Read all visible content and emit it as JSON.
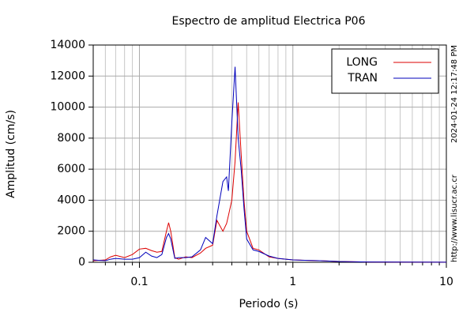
{
  "chart_data": {
    "type": "line",
    "title": "Espectro de amplitud Electrica P06",
    "xlabel": "Periodo (s)",
    "ylabel": "Amplitud (cm/s)",
    "annotations": [
      "2024-01-24 12:17:48 PM",
      "http://www.lisucr.ac.cr"
    ],
    "xscale": "log",
    "xlim": [
      0.05,
      10
    ],
    "xticks": [
      0.1,
      1,
      10
    ],
    "xminorticks": [
      0.06,
      0.07,
      0.08,
      0.09,
      0.2,
      0.3,
      0.4,
      0.5,
      0.6,
      0.7,
      0.8,
      0.9,
      2,
      3,
      4,
      5,
      6,
      7,
      8,
      9
    ],
    "ylim": [
      0,
      14000
    ],
    "yticks": [
      0,
      2000,
      4000,
      6000,
      8000,
      10000,
      12000,
      14000
    ],
    "grid": true,
    "legend": "upper right",
    "x": [
      0.05,
      0.06,
      0.065,
      0.07,
      0.08,
      0.09,
      0.1,
      0.11,
      0.12,
      0.13,
      0.14,
      0.15,
      0.155,
      0.16,
      0.17,
      0.18,
      0.2,
      0.22,
      0.25,
      0.27,
      0.3,
      0.32,
      0.35,
      0.37,
      0.38,
      0.4,
      0.42,
      0.44,
      0.46,
      0.48,
      0.5,
      0.55,
      0.6,
      0.7,
      0.8,
      1,
      1.5,
      2,
      3,
      5,
      10
    ],
    "series": [
      {
        "name": "LONG",
        "color": "#dd0000",
        "values": [
          100,
          150,
          350,
          450,
          300,
          500,
          850,
          900,
          750,
          650,
          700,
          2000,
          2550,
          2000,
          300,
          200,
          350,
          300,
          600,
          900,
          1100,
          2700,
          2000,
          2500,
          3000,
          4000,
          6500,
          10300,
          7000,
          4000,
          2000,
          900,
          800,
          350,
          250,
          150,
          100,
          50,
          20,
          10,
          5
        ]
      },
      {
        "name": "TRAN",
        "color": "#0000bb",
        "values": [
          150,
          100,
          200,
          250,
          200,
          200,
          300,
          650,
          400,
          300,
          500,
          1600,
          1850,
          1500,
          250,
          300,
          300,
          350,
          800,
          1600,
          1200,
          3000,
          5200,
          5500,
          4600,
          9000,
          12600,
          8000,
          6000,
          3500,
          1500,
          800,
          700,
          400,
          250,
          150,
          100,
          50,
          20,
          10,
          5
        ]
      }
    ]
  }
}
